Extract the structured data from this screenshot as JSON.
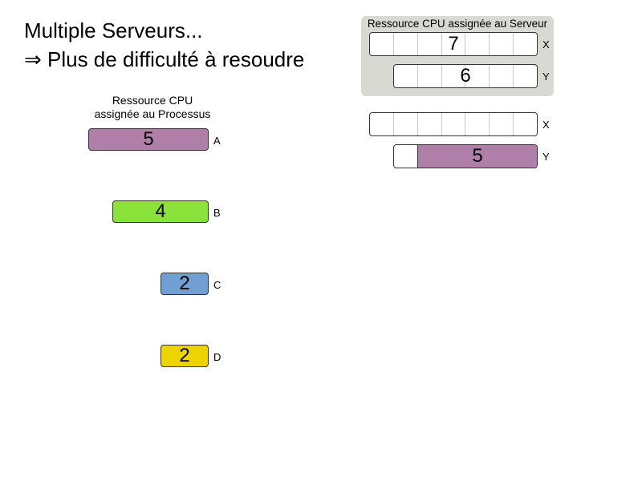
{
  "title": {
    "line1": "Multiple Serveurs...",
    "line2": "⇒ Plus de difficulté à resoudre"
  },
  "processes": {
    "header_line1": "Ressource CPU",
    "header_line2": "assignée au Processus",
    "items": [
      {
        "label": "A",
        "value": 5,
        "color": "#b07fa9"
      },
      {
        "label": "B",
        "value": 4,
        "color": "#8ae23a"
      },
      {
        "label": "C",
        "value": 2,
        "color": "#729fd3"
      },
      {
        "label": "D",
        "value": 2,
        "color": "#edd400"
      }
    ]
  },
  "servers": {
    "panel_title": "Ressource CPU assignée au Serveur",
    "capacity": [
      {
        "label": "X",
        "value": 7
      },
      {
        "label": "Y",
        "value": 6
      }
    ]
  },
  "assignment": [
    {
      "server": "X",
      "capacity": 7,
      "allocations": []
    },
    {
      "server": "Y",
      "capacity": 6,
      "allocations": [
        {
          "process": "A",
          "value": 5,
          "color": "#b07fa9"
        }
      ]
    }
  ]
}
